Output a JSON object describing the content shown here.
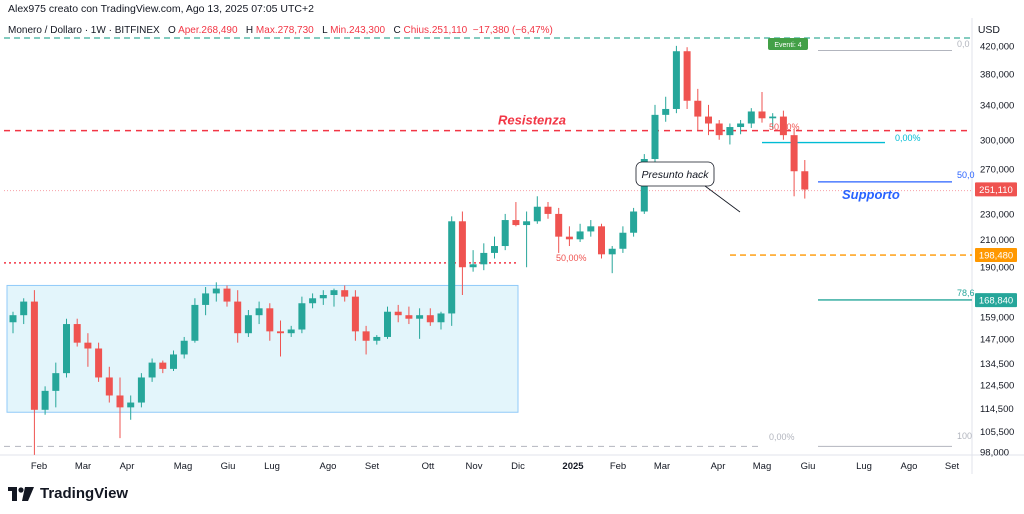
{
  "header": {
    "author_line": "Alex975 creato con TradingView.com, Ago 13, 2025 07:05 UTC+2",
    "symbol": "Monero / Dollaro · 1W · BITFINEX",
    "ohlc": {
      "open_label": "O",
      "open": "Aper.268,490",
      "high_label": "H",
      "high": "Max.278,730",
      "low_label": "L",
      "low": "Min.243,300",
      "close_label": "C",
      "close": "Chius.251,110",
      "change": "−17,380 (−6,47%)"
    },
    "currency": "USD"
  },
  "brand": {
    "name": "TradingView"
  },
  "colors": {
    "up": "#26a69a",
    "down": "#ef5350",
    "resistance": "#f23645",
    "support": "#2962ff",
    "fib": "#26a69a",
    "orange": "#ff9800",
    "range_fill": "#e3f5fb",
    "range_border": "#90caf9"
  },
  "chart_data": {
    "type": "candlestick",
    "ylim": [
      98000,
      432000
    ],
    "yscale": "log",
    "y_ticks": [
      "420,000",
      "380,000",
      "340,000",
      "300,000",
      "270,000",
      "230,000",
      "210,000",
      "190,000",
      "170,000",
      "159,000",
      "147,000",
      "134,500",
      "124,500",
      "114,500",
      "105,500",
      "98,000"
    ],
    "x_labels": [
      "Feb",
      "Mar",
      "Apr",
      "Mag",
      "Giu",
      "Lug",
      "Ago",
      "Set",
      "Ott",
      "Nov",
      "Dic",
      "2025",
      "Feb",
      "Mar",
      "Apr",
      "Mag",
      "Giu",
      "Lug",
      "Ago",
      "Set"
    ],
    "price_labels": [
      {
        "text": "251,110",
        "value": 251110,
        "color": "#ef5350"
      },
      {
        "text": "198,480",
        "value": 198480,
        "color": "#ff9800"
      },
      {
        "text": "168,840",
        "value": 168840,
        "color": "#26a69a"
      }
    ],
    "annotations": {
      "resistance_label": "Resistenza",
      "support_label": "Supporto",
      "hack_label": "Presunto hack",
      "event_badge": "Eventi: 4",
      "fib_top": "50,00%",
      "fib_mid_left": "50,00%",
      "fib_right": "0,00%",
      "fib_bottom": "0,00%",
      "edge_left_top": "0,0",
      "edge_support": "50,0",
      "edge_78": "78,6",
      "edge_100": "100"
    },
    "levels": {
      "resistance": 310000,
      "support": 258000,
      "red_dotted": 193000,
      "red_dotted_thin": 250000,
      "orange_dashed": 198480,
      "teal_line": 169000,
      "green_dashed_top": 432000,
      "fib_mid": 297000,
      "gray_top": 413000,
      "gray_bottom": 100000
    },
    "candles": [
      {
        "o": 156000,
        "h": 162000,
        "l": 150000,
        "c": 160000
      },
      {
        "o": 160000,
        "h": 170000,
        "l": 155000,
        "c": 168000
      },
      {
        "o": 168000,
        "h": 175000,
        "l": 97000,
        "c": 114000
      },
      {
        "o": 114000,
        "h": 124000,
        "l": 112000,
        "c": 122000
      },
      {
        "o": 122000,
        "h": 135000,
        "l": 115000,
        "c": 130000
      },
      {
        "o": 130000,
        "h": 158000,
        "l": 128000,
        "c": 155000
      },
      {
        "o": 155000,
        "h": 158000,
        "l": 143000,
        "c": 145000
      },
      {
        "o": 145000,
        "h": 150000,
        "l": 133000,
        "c": 142000
      },
      {
        "o": 142000,
        "h": 145000,
        "l": 126000,
        "c": 128000
      },
      {
        "o": 128000,
        "h": 133000,
        "l": 117000,
        "c": 120000
      },
      {
        "o": 120000,
        "h": 128000,
        "l": 103000,
        "c": 115000
      },
      {
        "o": 115000,
        "h": 120000,
        "l": 110000,
        "c": 117000
      },
      {
        "o": 117000,
        "h": 130000,
        "l": 115000,
        "c": 128000
      },
      {
        "o": 128000,
        "h": 137000,
        "l": 126000,
        "c": 135000
      },
      {
        "o": 135000,
        "h": 136000,
        "l": 130000,
        "c": 132000
      },
      {
        "o": 132000,
        "h": 141000,
        "l": 131000,
        "c": 139000
      },
      {
        "o": 139000,
        "h": 148000,
        "l": 137000,
        "c": 146000
      },
      {
        "o": 146000,
        "h": 170000,
        "l": 145000,
        "c": 166000
      },
      {
        "o": 166000,
        "h": 177000,
        "l": 160000,
        "c": 173000
      },
      {
        "o": 173000,
        "h": 180000,
        "l": 168000,
        "c": 176000
      },
      {
        "o": 176000,
        "h": 178000,
        "l": 165000,
        "c": 168000
      },
      {
        "o": 168000,
        "h": 175000,
        "l": 145000,
        "c": 150000
      },
      {
        "o": 150000,
        "h": 163000,
        "l": 148000,
        "c": 160000
      },
      {
        "o": 160000,
        "h": 168000,
        "l": 155000,
        "c": 164000
      },
      {
        "o": 164000,
        "h": 167000,
        "l": 146000,
        "c": 151000
      },
      {
        "o": 151000,
        "h": 157000,
        "l": 138000,
        "c": 150000
      },
      {
        "o": 150000,
        "h": 154000,
        "l": 148000,
        "c": 152000
      },
      {
        "o": 152000,
        "h": 171000,
        "l": 150000,
        "c": 167000
      },
      {
        "o": 167000,
        "h": 173000,
        "l": 164000,
        "c": 170000
      },
      {
        "o": 170000,
        "h": 175000,
        "l": 166000,
        "c": 172000
      },
      {
        "o": 172000,
        "h": 176000,
        "l": 165000,
        "c": 175000
      },
      {
        "o": 175000,
        "h": 178000,
        "l": 168000,
        "c": 171000
      },
      {
        "o": 171000,
        "h": 175000,
        "l": 146000,
        "c": 151000
      },
      {
        "o": 151000,
        "h": 154000,
        "l": 139000,
        "c": 146000
      },
      {
        "o": 146000,
        "h": 149000,
        "l": 144000,
        "c": 148000
      },
      {
        "o": 148000,
        "h": 165000,
        "l": 147000,
        "c": 162000
      },
      {
        "o": 162000,
        "h": 166000,
        "l": 156000,
        "c": 160000
      },
      {
        "o": 160000,
        "h": 165000,
        "l": 155000,
        "c": 158000
      },
      {
        "o": 158000,
        "h": 164000,
        "l": 147000,
        "c": 160000
      },
      {
        "o": 160000,
        "h": 164000,
        "l": 154000,
        "c": 156000
      },
      {
        "o": 156000,
        "h": 162000,
        "l": 152000,
        "c": 161000
      },
      {
        "o": 161000,
        "h": 228000,
        "l": 154000,
        "c": 224000
      },
      {
        "o": 224000,
        "h": 232000,
        "l": 172000,
        "c": 190000
      },
      {
        "o": 190000,
        "h": 202000,
        "l": 187000,
        "c": 192000
      },
      {
        "o": 192000,
        "h": 207000,
        "l": 188000,
        "c": 200000
      },
      {
        "o": 200000,
        "h": 212000,
        "l": 196000,
        "c": 205000
      },
      {
        "o": 205000,
        "h": 230000,
        "l": 202000,
        "c": 225000
      },
      {
        "o": 225000,
        "h": 240000,
        "l": 220000,
        "c": 221000
      },
      {
        "o": 221000,
        "h": 232000,
        "l": 190000,
        "c": 224000
      },
      {
        "o": 224000,
        "h": 245000,
        "l": 222000,
        "c": 236000
      },
      {
        "o": 236000,
        "h": 240000,
        "l": 226000,
        "c": 230000
      },
      {
        "o": 230000,
        "h": 235000,
        "l": 200000,
        "c": 212000
      },
      {
        "o": 212000,
        "h": 220000,
        "l": 205000,
        "c": 210000
      },
      {
        "o": 210000,
        "h": 222000,
        "l": 208000,
        "c": 216000
      },
      {
        "o": 216000,
        "h": 225000,
        "l": 212000,
        "c": 220000
      },
      {
        "o": 220000,
        "h": 222000,
        "l": 196000,
        "c": 199000
      },
      {
        "o": 199000,
        "h": 205000,
        "l": 186000,
        "c": 203000
      },
      {
        "o": 203000,
        "h": 220000,
        "l": 200000,
        "c": 215000
      },
      {
        "o": 215000,
        "h": 235000,
        "l": 212000,
        "c": 232000
      },
      {
        "o": 232000,
        "h": 285000,
        "l": 230000,
        "c": 280000
      },
      {
        "o": 280000,
        "h": 340000,
        "l": 275000,
        "c": 328000
      },
      {
        "o": 328000,
        "h": 350000,
        "l": 320000,
        "c": 335000
      },
      {
        "o": 335000,
        "h": 420000,
        "l": 330000,
        "c": 412000
      },
      {
        "o": 412000,
        "h": 418000,
        "l": 335000,
        "c": 345000
      },
      {
        "o": 345000,
        "h": 360000,
        "l": 310000,
        "c": 326000
      },
      {
        "o": 326000,
        "h": 340000,
        "l": 305000,
        "c": 318000
      },
      {
        "o": 318000,
        "h": 322000,
        "l": 300000,
        "c": 305000
      },
      {
        "o": 305000,
        "h": 318000,
        "l": 295000,
        "c": 314000
      },
      {
        "o": 314000,
        "h": 322000,
        "l": 306000,
        "c": 318000
      },
      {
        "o": 318000,
        "h": 336000,
        "l": 313000,
        "c": 332000
      },
      {
        "o": 332000,
        "h": 356000,
        "l": 319000,
        "c": 324000
      },
      {
        "o": 324000,
        "h": 330000,
        "l": 312000,
        "c": 326000
      },
      {
        "o": 326000,
        "h": 333000,
        "l": 300000,
        "c": 305000
      },
      {
        "o": 305000,
        "h": 312000,
        "l": 245000,
        "c": 268000
      },
      {
        "o": 268000,
        "h": 279000,
        "l": 243000,
        "c": 251000
      }
    ]
  }
}
